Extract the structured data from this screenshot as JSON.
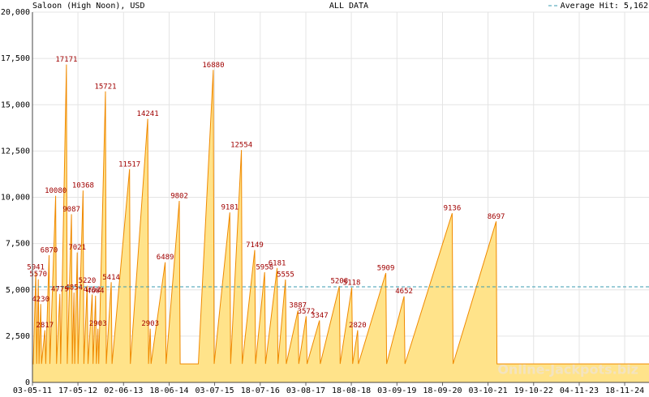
{
  "chart_data": {
    "type": "area",
    "title": "Saloon (High Noon), USD",
    "subtitle": "ALL DATA",
    "watermark": "Online-Jackpots.biz",
    "average": {
      "value": 5162,
      "label": "Average Hit: 5,162"
    },
    "average_color": "#3a9bb0",
    "xlim": [
      "03-05-11",
      "09-06-25"
    ],
    "xticks": [
      "03-05-11",
      "17-05-12",
      "02-06-13",
      "18-06-14",
      "03-07-15",
      "18-07-16",
      "03-08-17",
      "18-08-18",
      "03-09-19",
      "18-09-20",
      "03-10-21",
      "19-10-22",
      "04-11-23",
      "18-11-24"
    ],
    "ylim": [
      0,
      20000
    ],
    "yticks": [
      0,
      {
        "value": 2500,
        "label": "2,500"
      },
      {
        "value": 5000,
        "label": "5,000"
      },
      {
        "value": 7500,
        "label": "7,500"
      },
      {
        "value": 10000,
        "label": "10,000"
      },
      {
        "value": 12500,
        "label": "12,500"
      },
      {
        "value": 15000,
        "label": "15,000"
      },
      {
        "value": 17500,
        "label": "17,500"
      },
      {
        "value": 20000,
        "label": "20,000"
      }
    ],
    "grid": true,
    "series": [
      {
        "color": "#f08a00",
        "fill": "#ffe38a",
        "label_color": "#a00000",
        "x": [
          "03-05-11",
          "10-05-11",
          "31-05-11",
          "07-06-11",
          "21-06-11",
          "27-06-11",
          "11-07-11",
          "18-07-11",
          "15-08-11",
          "22-08-11",
          "19-09-11",
          "26-09-11",
          "13-11-11",
          "20-11-11",
          "18-12-11",
          "25-12-11",
          "11-02-12",
          "18-02-12",
          "24-03-12",
          "31-03-12",
          "14-04-12",
          "20-04-12",
          "11-05-12",
          "18-05-12",
          "29-06-12",
          "06-07-12",
          "02-08-12",
          "09-08-12",
          "13-09-12",
          "20-09-12",
          "11-10-12",
          "18-10-12",
          "31-10-12",
          "07-11-12",
          "02-01-13",
          "09-01-13",
          "19-02-13",
          "26-02-13",
          "22-07-13",
          "29-07-13",
          "21-12-13",
          "28-12-13",
          "11-01-14",
          "18-01-14",
          "16-05-14",
          "23-05-14",
          "11-09-14",
          "18-09-14",
          "17-02-15",
          "22-06-15",
          "29-06-15",
          "07-11-15",
          "14-11-15",
          "12-02-16",
          "19-02-16",
          "02-06-16",
          "09-06-16",
          "24-08-16",
          "31-08-16",
          "06-12-16",
          "13-12-16",
          "14-02-17",
          "21-02-17",
          "29-05-17",
          "05-06-17",
          "06-08-17",
          "13-08-17",
          "25-11-17",
          "02-12-17",
          "10-05-18",
          "17-05-18",
          "22-08-18",
          "29-08-18",
          "10-10-18",
          "16-10-18",
          "02-06-19",
          "09-06-19",
          "02-11-19",
          "09-11-19",
          "08-12-20",
          "15-12-20",
          "10-12-21",
          "17-12-21",
          "09-06-25"
        ],
        "values": [
          1000,
          1000,
          5941,
          1000,
          5570,
          1000,
          4230,
          1000,
          2817,
          1000,
          6870,
          1000,
          10080,
          1000,
          4779,
          1000,
          17171,
          1000,
          9087,
          1000,
          4854,
          1000,
          7021,
          1000,
          10368,
          1000,
          5220,
          1000,
          4752,
          1000,
          4684,
          1000,
          2903,
          1000,
          15721,
          1000,
          5414,
          1000,
          11517,
          1000,
          14241,
          1000,
          2903,
          1000,
          6489,
          1000,
          9802,
          1000,
          1000,
          16880,
          1000,
          9181,
          1000,
          12554,
          1000,
          7149,
          1000,
          5958,
          1000,
          6181,
          1000,
          5555,
          1000,
          3887,
          1000,
          3572,
          1000,
          3347,
          1000,
          5208,
          1000,
          5118,
          1000,
          2820,
          1000,
          5909,
          1000,
          4652,
          1000,
          9136,
          1000,
          8697,
          1000,
          1000
        ],
        "value_labels": [
          null,
          null,
          "5941",
          null,
          "5570",
          null,
          "4230",
          null,
          "2817",
          null,
          "6870",
          null,
          "10080",
          null,
          "4779",
          null,
          "17171",
          null,
          "9087",
          null,
          "4854",
          null,
          "7021",
          null,
          "10368",
          null,
          "5220",
          null,
          "4752",
          null,
          "4684",
          null,
          "2903",
          null,
          "15721",
          null,
          "5414",
          null,
          "11517",
          null,
          "14241",
          null,
          "2903",
          null,
          "6489",
          null,
          "9802",
          null,
          null,
          "16880",
          null,
          "9181",
          null,
          "12554",
          null,
          "7149",
          null,
          "5958",
          null,
          "6181",
          null,
          "5555",
          null,
          "3887",
          null,
          "3572",
          null,
          "3347",
          null,
          "5208",
          null,
          "5118",
          null,
          "2820",
          null,
          "5909",
          null,
          "4652",
          null,
          "9136",
          null,
          "8697",
          null,
          null
        ]
      }
    ]
  }
}
